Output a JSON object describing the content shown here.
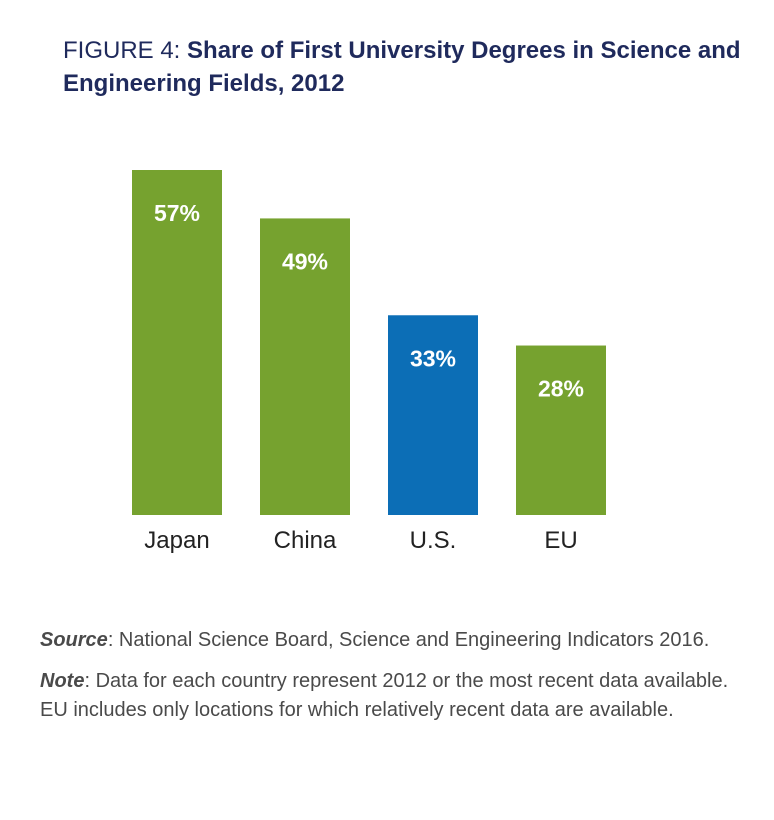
{
  "figure": {
    "label": "FIGURE 4: ",
    "title": "Share of First University Degrees in Science and Engineering Fields, 2012"
  },
  "chart_data": {
    "type": "bar",
    "title": "Share of First University Degrees in Science and Engineering Fields, 2012",
    "categories": [
      "Japan",
      "China",
      "U.S.",
      "EU"
    ],
    "values": [
      57,
      49,
      33,
      28
    ],
    "value_labels": [
      "57%",
      "49%",
      "33%",
      "28%"
    ],
    "unit": "%",
    "colors": [
      "#76a22f",
      "#76a22f",
      "#0c6eb6",
      "#76a22f"
    ],
    "ylim": [
      0,
      57
    ],
    "grid": false,
    "legend": "none"
  },
  "footnotes": {
    "source_lead": "Source",
    "source_text": ": National Science Board, Science and Engineering Indicators 2016.",
    "note_lead": "Note",
    "note_text": ": Data for each country represent 2012 or the most recent data available. EU includes only locations for which relatively recent data are available."
  }
}
